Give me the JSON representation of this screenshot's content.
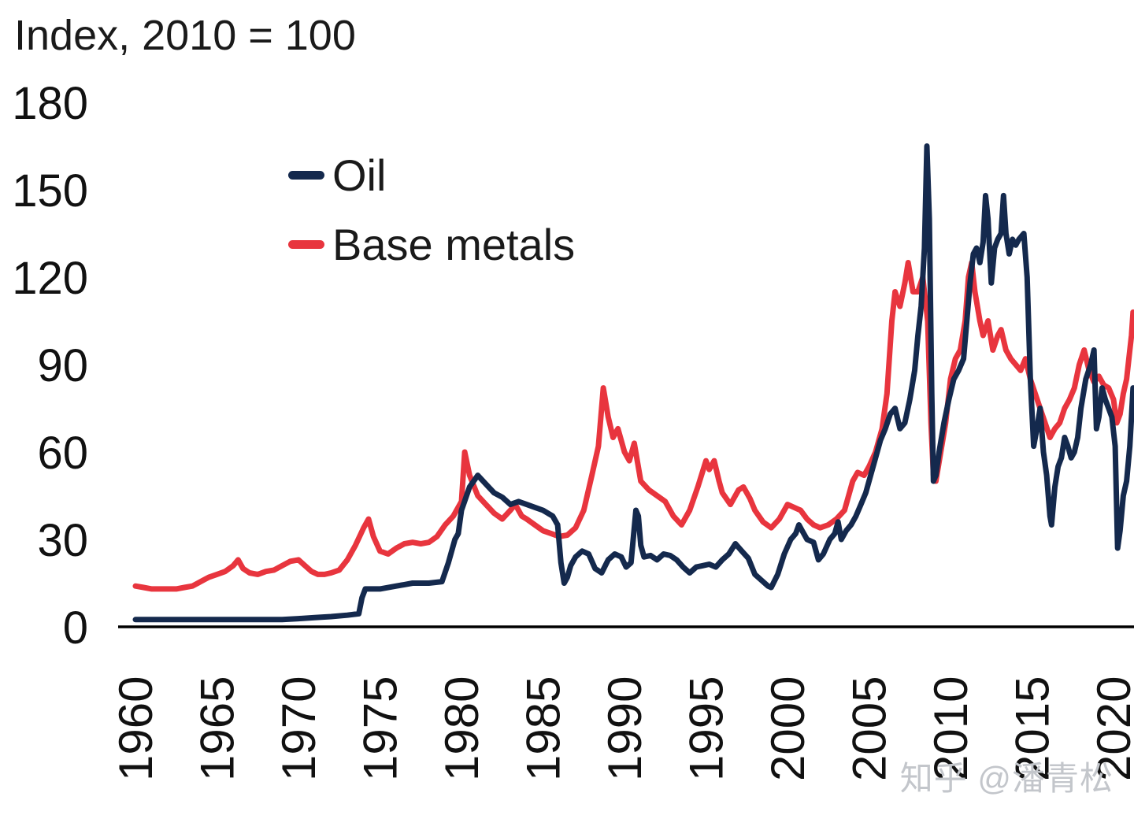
{
  "watermark": {
    "text": "知乎 @潘青松"
  },
  "chart_data": {
    "type": "line",
    "title": "Index, 2010 = 100",
    "xlabel": "",
    "ylabel": "",
    "ylim": [
      0,
      180
    ],
    "y_ticks": [
      0,
      30,
      60,
      90,
      120,
      150,
      180
    ],
    "x_ticks": [
      1960,
      1965,
      1970,
      1975,
      1980,
      1985,
      1990,
      1995,
      2000,
      2005,
      2010,
      2015,
      2020
    ],
    "xlim": [
      1959.5,
      2021.4
    ],
    "grid": false,
    "legend_position": "upper-left-inside",
    "series": [
      {
        "name": "Oil",
        "color": "#14294d",
        "x": [
          1960,
          1961,
          1962,
          1963,
          1964,
          1965,
          1966,
          1967,
          1968,
          1969,
          1970,
          1971,
          1972,
          1973,
          1973.7,
          1973.9,
          1974.1,
          1975,
          1976,
          1976.5,
          1977,
          1978,
          1978.8,
          1979.2,
          1979.6,
          1979.8,
          1980,
          1980.5,
          1981,
          1981.5,
          1982,
          1982.5,
          1983,
          1983.5,
          1984,
          1984.5,
          1985,
          1985.6,
          1985.9,
          1986.1,
          1986.3,
          1986.5,
          1986.7,
          1987,
          1987.4,
          1987.8,
          1988.2,
          1988.6,
          1989,
          1989.4,
          1989.8,
          1990.1,
          1990.4,
          1990.7,
          1990.85,
          1991,
          1991.2,
          1991.6,
          1992,
          1992.4,
          1992.8,
          1993.2,
          1993.6,
          1994,
          1994.4,
          1994.8,
          1995.2,
          1995.6,
          1996,
          1996.4,
          1996.8,
          1997.2,
          1997.6,
          1998,
          1998.4,
          1998.8,
          1999,
          1999.4,
          1999.8,
          2000.2,
          2000.5,
          2000.7,
          2000.9,
          2001.2,
          2001.6,
          2001.9,
          2002.2,
          2002.6,
          2002.9,
          2003.1,
          2003.3,
          2003.6,
          2003.9,
          2004.2,
          2004.5,
          2004.8,
          2005.1,
          2005.4,
          2005.7,
          2006,
          2006.3,
          2006.6,
          2006.9,
          2007.2,
          2007.5,
          2007.8,
          2008,
          2008.2,
          2008.4,
          2008.55,
          2008.7,
          2008.85,
          2008.95,
          2009.1,
          2009.3,
          2009.6,
          2009.9,
          2010.2,
          2010.5,
          2010.8,
          2011,
          2011.2,
          2011.4,
          2011.6,
          2011.8,
          2012,
          2012.15,
          2012.3,
          2012.5,
          2012.7,
          2012.9,
          2013.1,
          2013.25,
          2013.4,
          2013.6,
          2013.8,
          2014,
          2014.2,
          2014.5,
          2014.7,
          2014.9,
          2015.1,
          2015.3,
          2015.5,
          2015.7,
          2015.9,
          2016.1,
          2016.2,
          2016.4,
          2016.6,
          2016.8,
          2017,
          2017.2,
          2017.4,
          2017.6,
          2017.8,
          2018,
          2018.3,
          2018.6,
          2018.8,
          2018.95,
          2019.1,
          2019.3,
          2019.5,
          2019.7,
          2019.9,
          2020.1,
          2020.25,
          2020.4,
          2020.6,
          2020.8,
          2021,
          2021.1,
          2021.2
        ],
        "values": [
          2.5,
          2.5,
          2.5,
          2.5,
          2.5,
          2.5,
          2.5,
          2.5,
          2.5,
          2.5,
          2.8,
          3.2,
          3.5,
          4,
          4.5,
          10,
          13,
          13,
          14,
          14.5,
          15,
          15,
          15.5,
          22,
          30,
          32,
          40,
          48,
          52,
          49,
          46,
          44.5,
          42,
          43,
          42,
          41,
          40,
          38,
          35,
          22,
          15,
          17,
          21,
          24,
          26,
          25,
          20,
          18.5,
          23,
          25,
          24,
          20.5,
          22,
          40,
          38,
          28,
          24,
          24.5,
          23,
          25,
          24.5,
          23,
          20.5,
          18.5,
          20.5,
          21,
          21.5,
          20.5,
          23,
          25,
          28.5,
          26,
          23.5,
          18,
          16,
          14,
          13.5,
          18,
          25,
          30,
          32,
          35,
          33,
          30,
          29,
          23,
          25,
          30,
          32,
          36,
          30,
          33,
          35,
          38,
          42,
          46,
          52,
          58,
          64,
          68,
          73,
          75,
          68,
          70,
          78,
          88,
          100,
          110,
          130,
          165,
          140,
          80,
          50,
          52,
          60,
          70,
          78,
          85,
          88,
          92,
          105,
          118,
          128,
          130,
          125,
          132,
          148,
          140,
          118,
          130,
          133,
          135,
          148,
          135,
          128,
          133,
          131,
          133,
          135,
          120,
          85,
          62,
          68,
          75,
          60,
          52,
          38,
          35,
          48,
          55,
          58,
          65,
          62,
          58,
          60,
          65,
          75,
          85,
          90,
          95,
          68,
          72,
          82,
          78,
          75,
          72,
          62,
          27,
          33,
          45,
          50,
          62,
          72,
          82
        ]
      },
      {
        "name": "Base metals",
        "color": "#e8353e",
        "x": [
          1960,
          1960.5,
          1961,
          1961.5,
          1962,
          1962.5,
          1963,
          1963.5,
          1964,
          1964.5,
          1965,
          1965.5,
          1966,
          1966.3,
          1966.6,
          1967,
          1967.5,
          1968,
          1968.5,
          1969,
          1969.5,
          1970,
          1970.4,
          1970.8,
          1971.2,
          1971.6,
          1972,
          1972.5,
          1973,
          1973.5,
          1974,
          1974.3,
          1974.6,
          1975,
          1975.5,
          1976,
          1976.5,
          1977,
          1977.5,
          1978,
          1978.5,
          1979,
          1979.5,
          1980,
          1980.2,
          1980.5,
          1981,
          1981.5,
          1982,
          1982.5,
          1983,
          1983.3,
          1983.7,
          1984,
          1984.5,
          1985,
          1985.5,
          1986,
          1986.5,
          1987,
          1987.5,
          1988,
          1988.4,
          1988.7,
          1989,
          1989.3,
          1989.6,
          1990,
          1990.3,
          1990.6,
          1991,
          1991.5,
          1992,
          1992.5,
          1993,
          1993.5,
          1994,
          1994.5,
          1995,
          1995.2,
          1995.5,
          1995.8,
          1996,
          1996.5,
          1997,
          1997.3,
          1997.7,
          1998,
          1998.5,
          1999,
          1999.5,
          2000,
          2000.4,
          2000.8,
          2001.2,
          2001.6,
          2002,
          2002.5,
          2003,
          2003.5,
          2004,
          2004.3,
          2004.7,
          2005,
          2005.4,
          2005.8,
          2006.1,
          2006.4,
          2006.6,
          2006.9,
          2007.2,
          2007.4,
          2007.7,
          2008,
          2008.3,
          2008.6,
          2008.8,
          2008.95,
          2009.1,
          2009.4,
          2009.7,
          2010,
          2010.3,
          2010.6,
          2010.9,
          2011.1,
          2011.3,
          2011.5,
          2011.8,
          2012,
          2012.3,
          2012.6,
          2012.9,
          2013.1,
          2013.4,
          2013.7,
          2014,
          2014.3,
          2014.6,
          2014.9,
          2015.2,
          2015.5,
          2015.8,
          2016.1,
          2016.4,
          2016.7,
          2017,
          2017.3,
          2017.6,
          2017.9,
          2018.2,
          2018.5,
          2018.8,
          2019.1,
          2019.4,
          2019.7,
          2020,
          2020.2,
          2020.4,
          2020.6,
          2020.8,
          2021,
          2021.1,
          2021.2
        ],
        "values": [
          14,
          13.5,
          13,
          13,
          13,
          13,
          13.5,
          14,
          15.5,
          17,
          18,
          19,
          21,
          23,
          20,
          18.5,
          18,
          19,
          19.5,
          21,
          22.5,
          23,
          21,
          19,
          18,
          18,
          18.5,
          19.5,
          23,
          28,
          34,
          37,
          31,
          26,
          25,
          27,
          28.5,
          29,
          28.5,
          29,
          31,
          35,
          38,
          43,
          60,
          52,
          45,
          42,
          39,
          37,
          40,
          42,
          38,
          37,
          35,
          33,
          32,
          31,
          31.5,
          34,
          40,
          52,
          62,
          82,
          72,
          65,
          68,
          60,
          57,
          63,
          50,
          47,
          45,
          43,
          38,
          35,
          40,
          48,
          57,
          54,
          57,
          50,
          46,
          42,
          47,
          48,
          44,
          40,
          36,
          34,
          37,
          42,
          41,
          40,
          37,
          35,
          34,
          35,
          37,
          40,
          50,
          53,
          52,
          55,
          60,
          68,
          80,
          105,
          115,
          110,
          118,
          125,
          115,
          115,
          120,
          105,
          70,
          52,
          50,
          60,
          70,
          85,
          92,
          95,
          105,
          120,
          125,
          115,
          105,
          100,
          105,
          95,
          100,
          102,
          95,
          92,
          90,
          88,
          92,
          85,
          80,
          75,
          70,
          65,
          68,
          70,
          75,
          78,
          82,
          90,
          95,
          88,
          84,
          86,
          83,
          82,
          78,
          70,
          73,
          80,
          85,
          95,
          100,
          108
        ]
      }
    ]
  }
}
